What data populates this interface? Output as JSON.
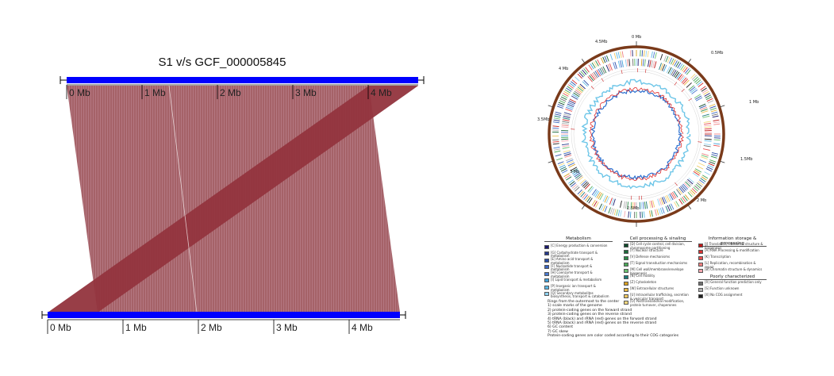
{
  "synteny": {
    "title": "S1 v/s GCF_000005845",
    "top_ticks": [
      "0 Mb",
      "1 Mb",
      "2 Mb",
      "3 Mb",
      "4 Mb"
    ],
    "bottom_ticks": [
      "0 Mb",
      "1 Mb",
      "2 Mb",
      "3 Mb",
      "4 Mb"
    ],
    "colors": {
      "genome_bar": "#0000ff",
      "forward_link": "#a05a60",
      "inverted_link": "#8b1a26"
    }
  },
  "circos": {
    "ring_labels": [
      "0 Mb",
      "0.5Mb",
      "1 Mb",
      "1.5Mb",
      "2 Mb",
      "2.5Mb",
      "3 Mb",
      "3.5Mb",
      "4 Mb",
      "4.5Mb"
    ],
    "colors": {
      "outer_ring": "#7a3a1a",
      "gc_skew_pos": "#e03030",
      "gc_skew_neg": "#2a6fd0",
      "gc_content": "#6ec6e8"
    }
  },
  "legend": {
    "metabolism": {
      "title": "Metabolism",
      "items": [
        {
          "label": "[C] Energy production & conversion",
          "color": "#1a1a6e"
        },
        {
          "label": "[G] Carbohydrate transport & metabolism",
          "color": "#263a8c"
        },
        {
          "label": "[E] Amino acid transport & metabolism",
          "color": "#2a4fa8"
        },
        {
          "label": "[F] Nucleotide transport & metabolism",
          "color": "#3a65c0"
        },
        {
          "label": "[H] Coenzyme transport & metabolism",
          "color": "#4a7ad0"
        },
        {
          "label": "[I] Lipid transport & metabolism",
          "color": "#3fa0d8"
        },
        {
          "label": "[P] Inorganic ion transport & metabolism",
          "color": "#5ab8e6"
        },
        {
          "label": "[Q] Secondary metabolites biosynthesis, transport & catabolism",
          "color": "#8fd3f2"
        }
      ]
    },
    "cellular": {
      "title": "Cell processing & sinaling",
      "items": [
        {
          "label": "[D] Cell cycle control, cell division, chromosome partitioning",
          "color": "#0f4a2a"
        },
        {
          "label": "[Y] Nuclear structure",
          "color": "#1c6a3a"
        },
        {
          "label": "[V] Defense mechanisms",
          "color": "#2c8a48"
        },
        {
          "label": "[T] Signal transduction mechanisms",
          "color": "#4aa858"
        },
        {
          "label": "[M] Cell wall/membrane/envelope biogenesis",
          "color": "#6ac070"
        },
        {
          "label": "[N] Cell motility",
          "color": "#1a7a7a"
        },
        {
          "label": "[Z] Cytoskeleton",
          "color": "#d8a020"
        },
        {
          "label": "[W] Extracellular structures",
          "color": "#e8b840"
        },
        {
          "label": "[U] Intracellular trafficking, secretion & vesicular transport",
          "color": "#f0c860"
        },
        {
          "label": "[O] Posttranslational modification, protein turnover, chaperones",
          "color": "#f5d880"
        }
      ]
    },
    "information": {
      "title": "Information storage & processing",
      "items": [
        {
          "label": "[J] Translation, ribosomal structure & biogenesis",
          "color": "#c01818"
        },
        {
          "label": "[A] RNA Processing & modification",
          "color": "#d83030"
        },
        {
          "label": "[K] Transcription",
          "color": "#e85050"
        },
        {
          "label": "[L] Replication, recombination & repair",
          "color": "#f08080"
        },
        {
          "label": "[B] Chromatin structure & dynamics",
          "color": "#f4a8b0"
        }
      ]
    },
    "poorly": {
      "title": "Poorly characterized",
      "items": [
        {
          "label": "[R] General function prediction only",
          "color": "#707070"
        },
        {
          "label": "[S] Function unknown",
          "color": "#b0b0b0"
        },
        {
          "label": "[X] No COG assignment",
          "color": "#202020"
        }
      ]
    },
    "rings_text": [
      "Rings from the outermost to the center",
      "1) scale marks of the genome",
      "2) protein-coding genes on the forward strand",
      "3) protein-coding genes on the reverse strand",
      "4) tRNA (black) and rRNA (red) genes on the forward strand",
      "5) tRNA (black) and rRNA (red) genes on the reverse strand",
      "6) GC content",
      "7) GC skew",
      "Protein-coding genes are color coded according to their COG categories"
    ]
  }
}
